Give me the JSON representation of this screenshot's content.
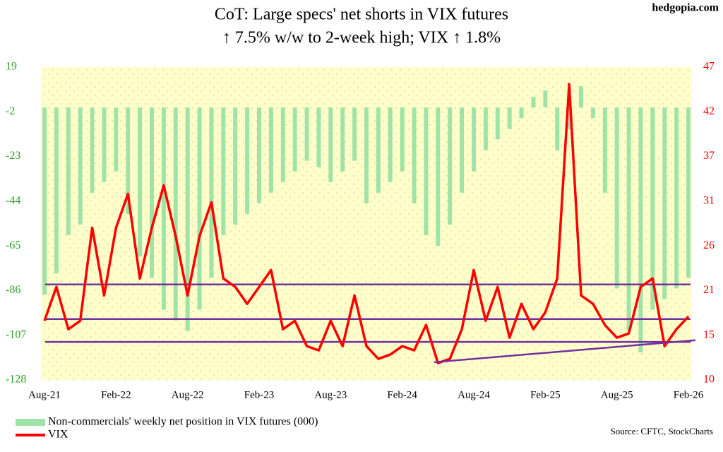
{
  "chart_data": {
    "type": "bar-line",
    "title": "CoT: Large specs' net shorts in VIX futures",
    "subtitle": "↑ 7.5% w/w to 2-week high; VIX ↑ 1.8%",
    "watermark": "hedgopia.com",
    "source": "Source: CFTC, StockCharts",
    "categories": [
      "Aug-21",
      null,
      null,
      null,
      null,
      null,
      "Feb-22",
      null,
      null,
      null,
      null,
      null,
      "Aug-22",
      null,
      null,
      null,
      null,
      null,
      "Feb-23",
      null,
      null,
      null,
      null,
      null,
      "Aug-23",
      null,
      null,
      null,
      null,
      null,
      "Feb-24",
      null,
      null,
      null,
      null,
      null,
      "Aug-24",
      null,
      null,
      null,
      null,
      null,
      "Feb-25",
      null,
      null,
      null,
      null,
      null,
      "Aug-25",
      null,
      null,
      null,
      null,
      null,
      "Feb-26"
    ],
    "series": [
      {
        "name": "Non-commercials' weekly net position in VIX futures (000)",
        "color": "#9fe3a6",
        "type": "bar",
        "axis": "y",
        "values": [
          -88,
          -78,
          -60,
          -55,
          -40,
          -35,
          -30,
          -50,
          -70,
          -80,
          -95,
          -100,
          -105,
          -95,
          -80,
          -60,
          -55,
          -50,
          -45,
          -40,
          -35,
          -30,
          -25,
          -28,
          -35,
          -30,
          -25,
          -45,
          -40,
          -35,
          -30,
          -45,
          -60,
          -65,
          -55,
          -40,
          -30,
          -20,
          -15,
          -10,
          -5,
          5,
          8,
          -20,
          -10,
          10,
          -5,
          -40,
          -85,
          -105,
          -115,
          -95,
          -90,
          -85,
          -80
        ]
      },
      {
        "name": "VIX",
        "color": "#ff0000",
        "type": "line",
        "axis": "y2",
        "values": [
          17,
          21,
          16,
          17,
          28,
          20,
          28,
          32,
          22,
          28,
          33,
          27,
          20,
          27,
          31,
          22,
          21,
          19,
          21,
          23,
          16,
          17,
          14,
          13.5,
          17,
          14,
          20,
          14,
          12.5,
          13,
          14,
          13.5,
          16.5,
          12,
          12.5,
          16,
          23,
          17,
          21,
          15,
          19,
          16,
          18,
          22,
          45,
          20,
          19,
          16.5,
          15,
          15.5,
          21,
          22,
          14,
          16,
          17.5
        ]
      }
    ],
    "ylim": [
      -128,
      19
    ],
    "yticks": [
      19,
      -2,
      -23,
      -44,
      -65,
      -86,
      -107,
      -128
    ],
    "y2lim": [
      10,
      47
    ],
    "y2ticks": [
      {
        "value": 10,
        "label": "10"
      },
      {
        "value": 15.29,
        "label": "15"
      },
      {
        "value": 20.57,
        "label": "21"
      },
      {
        "value": 25.86,
        "label": "26"
      },
      {
        "value": 31.14,
        "label": "31"
      },
      {
        "value": 36.43,
        "label": "37"
      },
      {
        "value": 41.71,
        "label": "42"
      },
      {
        "value": 47,
        "label": "47"
      }
    ],
    "hlines": [
      21.3,
      17.2,
      14.5
    ],
    "trendline": [
      12.1,
      14.7
    ],
    "line_color": "#7030a0",
    "left_tick_color": "#2ca02c",
    "right_tick_color": "#ff0000",
    "background": "#ffffcc"
  }
}
